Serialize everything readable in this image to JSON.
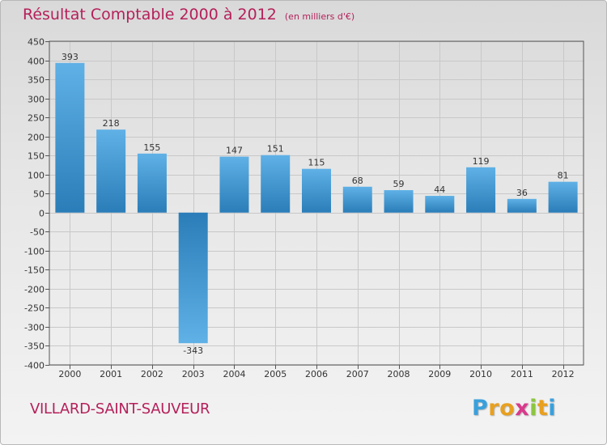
{
  "chart_data": {
    "type": "bar",
    "title": "Résultat Comptable 2000 à 2012",
    "unit": "(en milliers d'€)",
    "categories": [
      "2000",
      "2001",
      "2002",
      "2003",
      "2004",
      "2005",
      "2006",
      "2007",
      "2008",
      "2009",
      "2010",
      "2011",
      "2012"
    ],
    "values": [
      393,
      218,
      155,
      -343,
      147,
      151,
      115,
      68,
      59,
      44,
      119,
      36,
      81
    ],
    "ylim": [
      -400,
      450
    ],
    "yticks": [
      450,
      400,
      350,
      300,
      250,
      200,
      150,
      100,
      50,
      0,
      -50,
      -100,
      -150,
      -200,
      -250,
      -300,
      -350,
      -400
    ],
    "grid": true,
    "xlabel": "",
    "ylabel": ""
  },
  "place_name": "VILLARD-SAINT-SAUVEUR",
  "logo": {
    "letters": [
      "P",
      "r",
      "o",
      "x",
      "i",
      "t",
      "i"
    ],
    "colors": [
      "#3aa0dc",
      "#e8a020",
      "#e8a020",
      "#d93a8c",
      "#8cc63f",
      "#e8a020",
      "#3aa0dc"
    ]
  },
  "colors": {
    "title": "#b5205a",
    "bar_light": "#5fb1e6",
    "bar_dark": "#2a7db8"
  }
}
